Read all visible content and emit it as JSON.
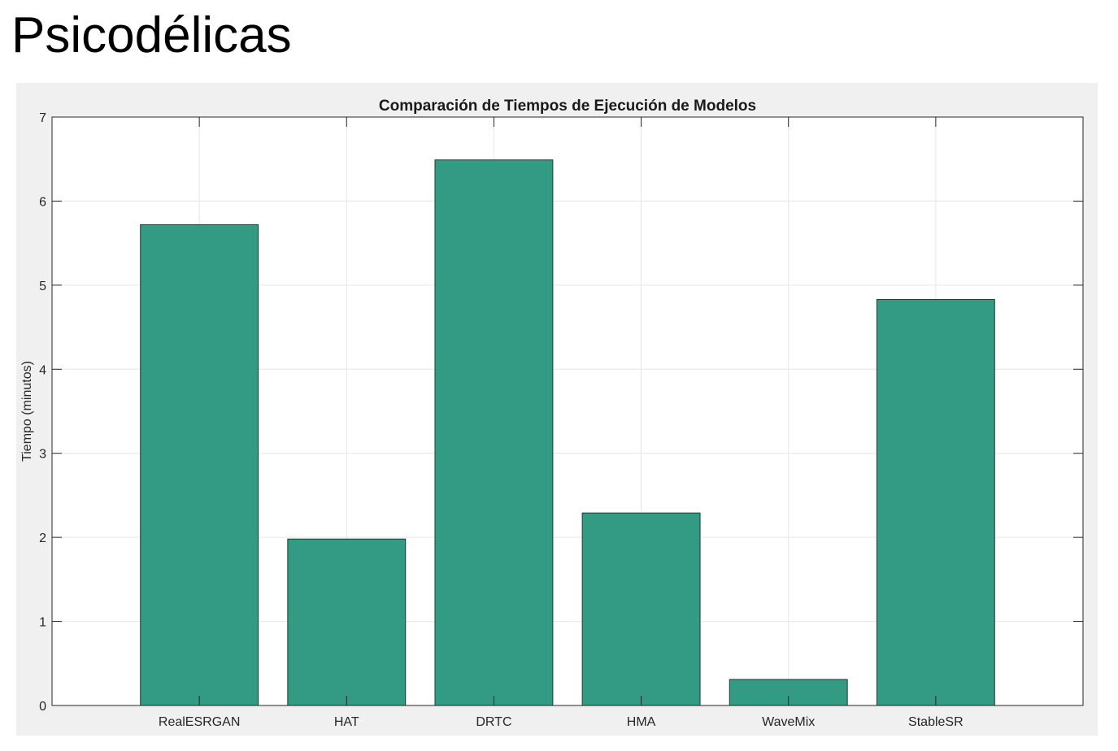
{
  "page": {
    "title": "Psicodélicas"
  },
  "chart_data": {
    "type": "bar",
    "title": "Comparación de Tiempos de Ejecución de Modelos",
    "xlabel": "",
    "ylabel": "Tiempo (minutos)",
    "categories": [
      "RealESRGAN",
      "HAT",
      "DRTC",
      "HMA",
      "WaveMix",
      "StableSR"
    ],
    "values": [
      5.72,
      1.98,
      6.49,
      2.29,
      0.31,
      4.83
    ],
    "ylim": [
      0,
      7
    ],
    "xlim": [
      0,
      7
    ],
    "yticks": [
      0,
      1,
      2,
      3,
      4,
      5,
      6,
      7
    ],
    "grid": true,
    "legend": "none",
    "colors": {
      "bar_fill": "#339a84",
      "bar_edge": "#1e3d34",
      "axes_bg": "#ffffff",
      "figure_bg": "#f0f0f0",
      "grid": "#e6e6e6",
      "axis": "#262626"
    }
  }
}
